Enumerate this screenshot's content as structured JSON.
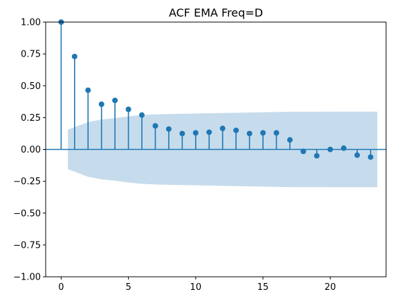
{
  "chart_data": {
    "type": "stem",
    "title": "ACF EMA Freq=D",
    "xlabel": "",
    "ylabel": "",
    "xlim": [
      -1.15,
      24.15
    ],
    "ylim": [
      -1.0,
      1.0
    ],
    "x_ticks": [
      0,
      5,
      10,
      15,
      20
    ],
    "x_tick_labels": [
      "0",
      "5",
      "10",
      "15",
      "20"
    ],
    "y_ticks": [
      -1.0,
      -0.75,
      -0.5,
      -0.25,
      0.0,
      0.25,
      0.5,
      0.75,
      1.0
    ],
    "y_tick_labels": [
      "−1.00",
      "−0.75",
      "−0.50",
      "−0.25",
      "0.00",
      "0.25",
      "0.50",
      "0.75",
      "1.00"
    ],
    "grid": false,
    "lags": [
      0,
      1,
      2,
      3,
      4,
      5,
      6,
      7,
      8,
      9,
      10,
      11,
      12,
      13,
      14,
      15,
      16,
      17,
      18,
      19,
      20,
      21,
      22,
      23
    ],
    "values": [
      1.0,
      0.73,
      0.465,
      0.355,
      0.385,
      0.315,
      0.27,
      0.185,
      0.16,
      0.125,
      0.13,
      0.135,
      0.165,
      0.15,
      0.125,
      0.13,
      0.13,
      0.075,
      -0.015,
      -0.05,
      0.0,
      0.01,
      -0.045,
      -0.06
    ],
    "confidence_band": {
      "x": [
        0.5,
        1,
        2,
        3,
        4,
        5,
        6,
        7,
        8,
        9,
        10,
        11,
        12,
        13,
        14,
        15,
        16,
        17,
        18,
        19,
        20,
        21,
        22,
        23,
        23.5
      ],
      "upper": [
        0.155,
        0.175,
        0.215,
        0.235,
        0.245,
        0.26,
        0.27,
        0.275,
        0.278,
        0.28,
        0.282,
        0.284,
        0.286,
        0.288,
        0.29,
        0.292,
        0.294,
        0.296,
        0.296,
        0.296,
        0.297,
        0.297,
        0.297,
        0.297,
        0.297
      ]
    },
    "colors": {
      "stem": "#1f77b4",
      "marker": "#1f77b4",
      "band": "#c6dcec",
      "zero_line": "#1f77b4",
      "axes": "#000000"
    }
  }
}
